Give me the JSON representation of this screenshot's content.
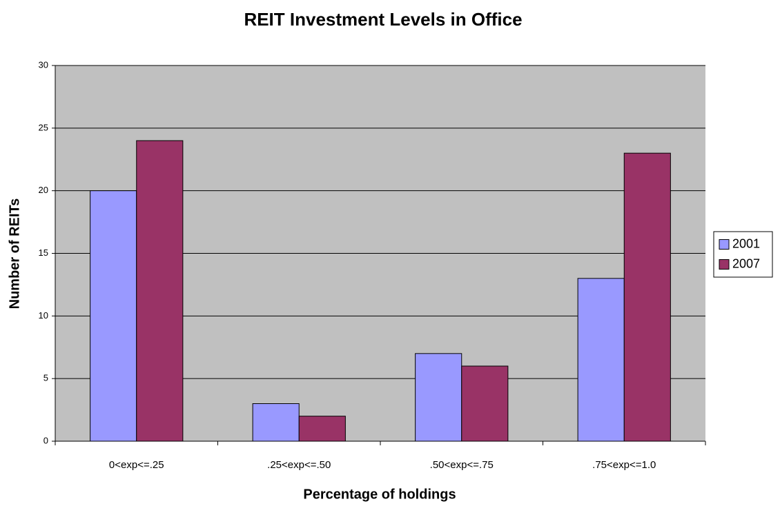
{
  "chart_data": {
    "type": "bar",
    "title": "REIT Investment Levels in Office",
    "x_label": "Percentage of holdings",
    "y_label": "Number of REITs",
    "categories": [
      "0<exp<=.25",
      ".25<exp<=.50",
      ".50<exp<=.75",
      ".75<exp<=1.0"
    ],
    "series": [
      {
        "name": "2001",
        "color": "#9999ff",
        "values": [
          20,
          3,
          7,
          13
        ]
      },
      {
        "name": "2007",
        "color": "#993366",
        "values": [
          24,
          2,
          6,
          23
        ]
      }
    ],
    "ylim": [
      0,
      30
    ],
    "yticks": [
      0,
      5,
      10,
      15,
      20,
      25,
      30
    ],
    "grid": true,
    "legend": "right"
  }
}
